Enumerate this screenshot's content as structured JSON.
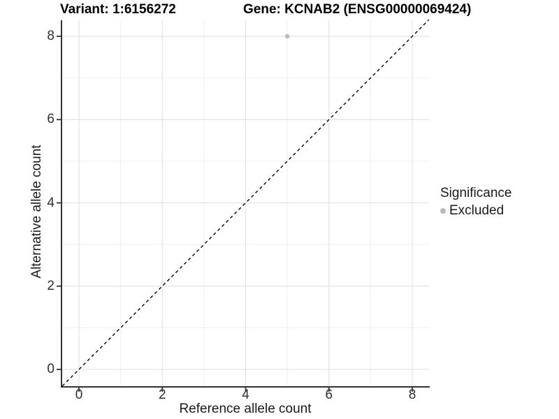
{
  "chart_data": {
    "type": "scatter",
    "title_left": "Variant: 1:6156272",
    "title_right": "Gene: KCNAB2 (ENSG00000069424)",
    "xlabel": "Reference allele count",
    "ylabel": "Alternative allele count",
    "xlim": [
      -0.4,
      8.4
    ],
    "ylim": [
      -0.4,
      8.4
    ],
    "xticks": [
      0,
      2,
      4,
      6,
      8
    ],
    "yticks": [
      0,
      2,
      4,
      6,
      8
    ],
    "grid": "major and minor gridlines on white background",
    "reference_line": {
      "kind": "identity y=x",
      "style": "dashed",
      "color": "#000000"
    },
    "series": [
      {
        "name": "Excluded",
        "color": "#bcbcbc",
        "points": [
          {
            "x": 5,
            "y": 8
          }
        ]
      }
    ],
    "legend": {
      "title": "Significance",
      "position": "right",
      "items": [
        {
          "label": "Excluded",
          "color": "#b9b9b9"
        }
      ]
    }
  }
}
